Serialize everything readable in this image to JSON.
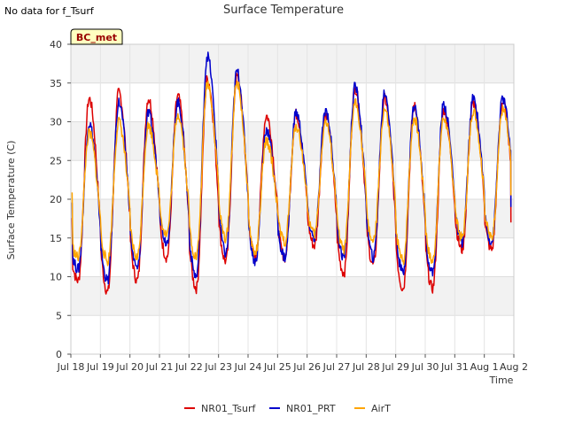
{
  "header": {
    "no_data_note": "No data for f_Tsurf"
  },
  "badge": {
    "label": "BC_met"
  },
  "chart_data": {
    "type": "line",
    "title": "Surface Temperature",
    "xlabel": "Time",
    "ylabel": "Surface Temperature (C)",
    "ylim": [
      0,
      40
    ],
    "yticks": [
      0,
      5,
      10,
      15,
      20,
      25,
      30,
      35,
      40
    ],
    "xlim": [
      "Jul 18",
      "Aug 2"
    ],
    "xticks": [
      "Jul 18",
      "Jul 19",
      "Jul 20",
      "Jul 21",
      "Jul 22",
      "Jul 23",
      "Jul 24",
      "Jul 25",
      "Jul 26",
      "Jul 27",
      "Jul 28",
      "Jul 29",
      "Jul 30",
      "Jul 31",
      "Aug 1",
      "Aug 2"
    ],
    "grid": true,
    "legend_position": "bottom",
    "day_minima_note": "daily extremes per series, index 0 = Jul 18",
    "series": [
      {
        "name": "NR01_Tsurf",
        "color": "#dd0000",
        "mins": [
          9.5,
          8.0,
          9.5,
          12.5,
          8.5,
          12.0,
          12.5,
          12.5,
          14.0,
          10.5,
          11.5,
          8.5,
          8.5,
          13.5
        ],
        "maxs": [
          33.0,
          33.8,
          33.0,
          33.3,
          35.5,
          35.8,
          30.8,
          31.0,
          31.0,
          34.3,
          33.0,
          32.0,
          31.5,
          32.5
        ]
      },
      {
        "name": "NR01_PRT",
        "color": "#0000cc",
        "mins": [
          11.0,
          9.5,
          11.0,
          14.5,
          10.0,
          13.0,
          12.0,
          12.5,
          15.0,
          12.5,
          12.5,
          10.5,
          10.5,
          14.5
        ],
        "maxs": [
          29.8,
          32.5,
          31.0,
          32.5,
          38.5,
          36.5,
          29.0,
          31.2,
          31.5,
          34.5,
          33.8,
          32.0,
          32.2,
          33.0
        ]
      },
      {
        "name": "AirT",
        "color": "#ffa500",
        "mins": [
          12.5,
          12.0,
          12.5,
          15.5,
          12.5,
          15.0,
          13.0,
          14.5,
          15.5,
          13.5,
          14.5,
          12.0,
          12.0,
          15.0
        ],
        "maxs": [
          28.5,
          30.0,
          29.5,
          31.0,
          35.0,
          35.0,
          27.5,
          29.5,
          30.0,
          32.5,
          31.5,
          30.5,
          30.5,
          31.5
        ]
      }
    ],
    "start_value": [
      17.5,
      19.5,
      20.8
    ],
    "end_value": [
      17.0,
      19.0,
      20.5
    ]
  }
}
